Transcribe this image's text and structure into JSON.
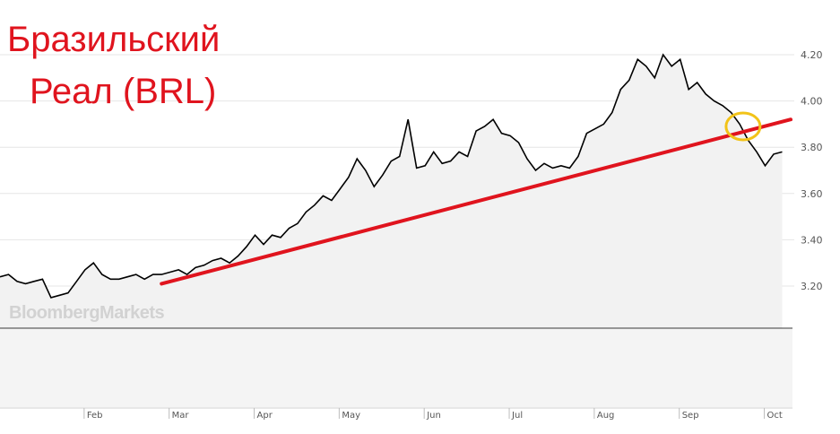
{
  "title": {
    "line1": "Бразильский",
    "line2": "Реал (BRL)"
  },
  "watermark": "BloombergMarkets",
  "colors": {
    "price_line": "#000000",
    "area_fill": "#f2f2f2",
    "trend_line": "#e0141e",
    "highlight_circle": "#f2c318",
    "title": "#e0141e"
  },
  "chart_data": {
    "type": "line",
    "title": "Бразильский Реал (BRL)",
    "xlabel": "",
    "ylabel": "",
    "y_ticks": [
      "3.20",
      "3.40",
      "3.60",
      "3.80",
      "4.00",
      "4.20"
    ],
    "x_ticks": [
      "Feb",
      "Mar",
      "Apr",
      "May",
      "Jun",
      "Jul",
      "Aug",
      "Sep",
      "Oct"
    ],
    "ylim": [
      3.0,
      4.25
    ],
    "xlim": [
      0,
      9.3
    ],
    "grid": true,
    "series": [
      {
        "x": [
          0.0,
          0.1,
          0.2,
          0.3,
          0.4,
          0.5,
          0.6,
          0.7,
          0.8,
          0.9,
          1.0,
          1.1,
          1.2,
          1.3,
          1.4,
          1.5,
          1.6,
          1.7,
          1.8,
          1.9,
          2.0,
          2.1,
          2.2,
          2.3,
          2.4,
          2.5,
          2.6,
          2.7,
          2.8,
          2.9,
          3.0,
          3.1,
          3.2,
          3.3,
          3.4,
          3.5,
          3.6,
          3.7,
          3.8,
          3.9,
          4.0,
          4.1,
          4.2,
          4.3,
          4.4,
          4.5,
          4.6,
          4.7,
          4.8,
          4.9,
          5.0,
          5.1,
          5.2,
          5.3,
          5.4,
          5.5,
          5.6,
          5.7,
          5.8,
          5.9,
          6.0,
          6.1,
          6.2,
          6.3,
          6.4,
          6.5,
          6.6,
          6.7,
          6.8,
          6.9,
          7.0,
          7.1,
          7.2,
          7.3,
          7.4,
          7.5,
          7.6,
          7.7,
          7.8,
          7.9,
          8.0,
          8.1,
          8.2,
          8.3,
          8.4,
          8.5,
          8.6,
          8.7,
          8.8,
          8.9,
          9.0,
          9.1,
          9.2
        ],
        "values": [
          3.24,
          3.25,
          3.22,
          3.21,
          3.22,
          3.23,
          3.15,
          3.16,
          3.17,
          3.22,
          3.27,
          3.3,
          3.25,
          3.23,
          3.23,
          3.24,
          3.25,
          3.23,
          3.25,
          3.25,
          3.26,
          3.27,
          3.25,
          3.28,
          3.29,
          3.31,
          3.32,
          3.3,
          3.33,
          3.37,
          3.42,
          3.38,
          3.42,
          3.41,
          3.45,
          3.47,
          3.52,
          3.55,
          3.59,
          3.57,
          3.62,
          3.67,
          3.75,
          3.7,
          3.63,
          3.68,
          3.74,
          3.76,
          3.92,
          3.71,
          3.72,
          3.78,
          3.73,
          3.74,
          3.78,
          3.76,
          3.87,
          3.89,
          3.92,
          3.86,
          3.85,
          3.82,
          3.75,
          3.7,
          3.73,
          3.71,
          3.72,
          3.71,
          3.76,
          3.86,
          3.88,
          3.9,
          3.95,
          4.05,
          4.09,
          4.18,
          4.15,
          4.1,
          4.2,
          4.15,
          4.18,
          4.05,
          4.08,
          4.03,
          4.0,
          3.98,
          3.95,
          3.9,
          3.83,
          3.78,
          3.72,
          3.77,
          3.78
        ]
      }
    ],
    "trend_line": {
      "start": {
        "x": 1.9,
        "y": 3.21
      },
      "end": {
        "x": 9.3,
        "y": 3.92
      }
    },
    "highlight": {
      "x": 8.74,
      "y": 3.89
    }
  }
}
